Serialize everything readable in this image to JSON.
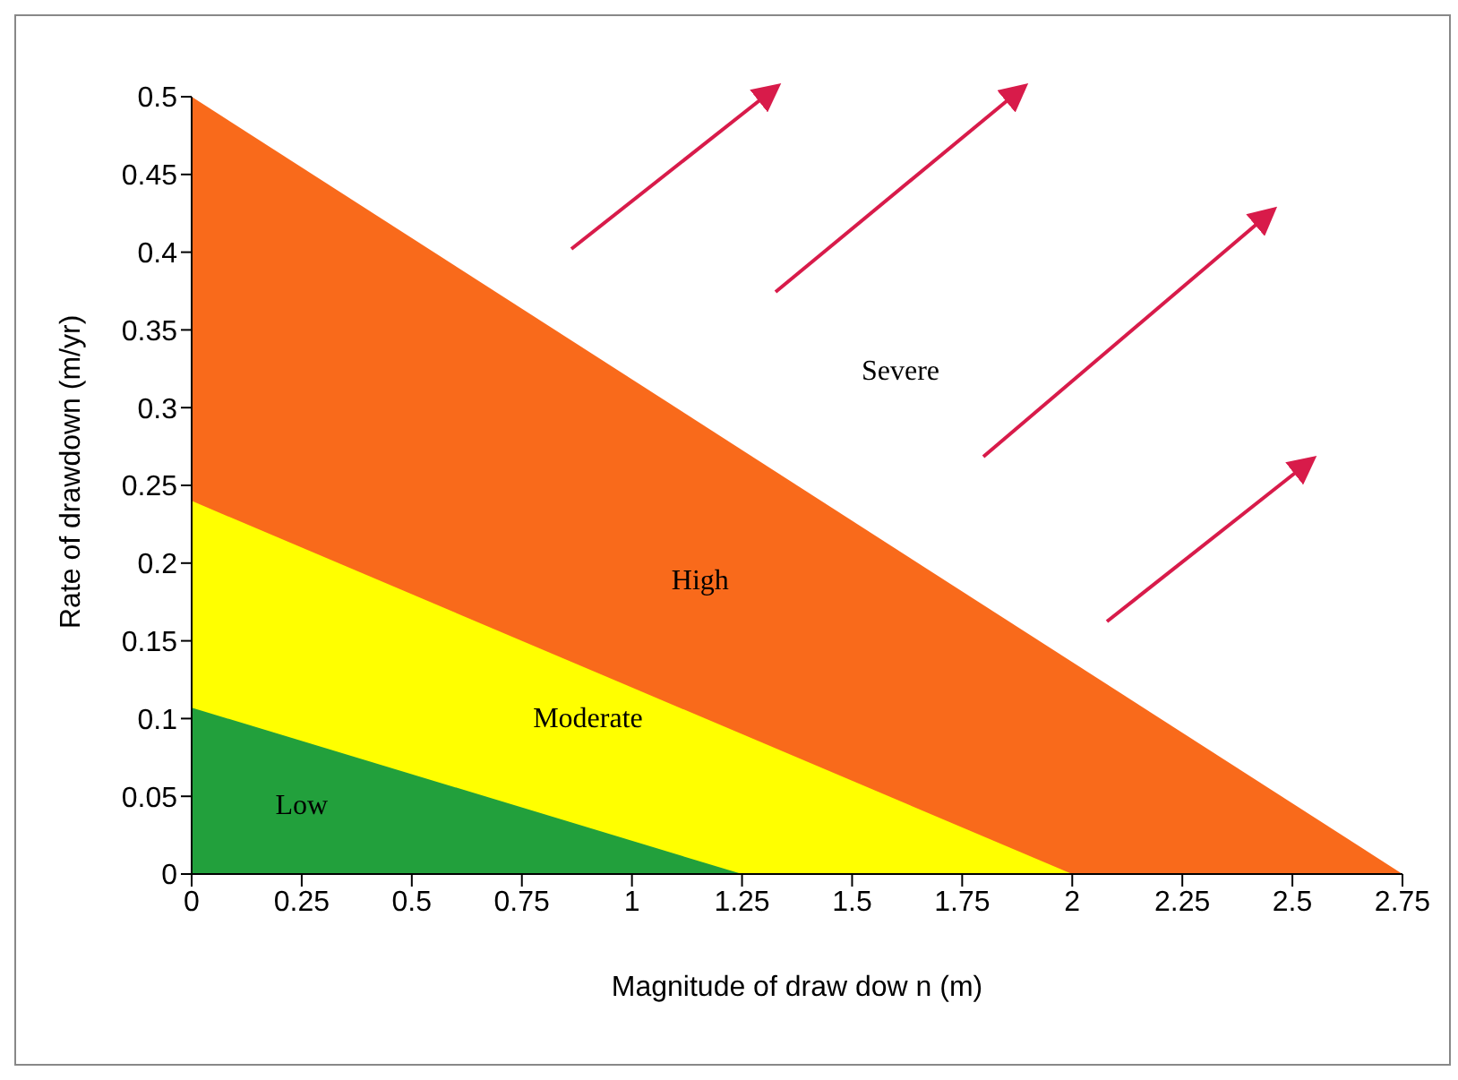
{
  "chart_data": {
    "type": "area",
    "xlabel": "Magnitude of draw dow n (m)",
    "ylabel": "Rate of drawdown (m/yr)",
    "series": [
      {
        "name": "High",
        "color": "#f96a1b",
        "x": [
          0,
          2.75
        ],
        "values": [
          0.5,
          0
        ]
      },
      {
        "name": "Moderate",
        "color": "#ffff00",
        "x": [
          0,
          2
        ],
        "values": [
          0.24,
          0
        ]
      },
      {
        "name": "Low",
        "color": "#22a03c",
        "x": [
          0,
          1.25
        ],
        "values": [
          0.107,
          0
        ]
      }
    ],
    "annotations": [
      "Severe"
    ],
    "xlim": [
      0,
      2.75
    ],
    "xticks": [
      0,
      0.25,
      0.5,
      0.75,
      1,
      1.25,
      1.5,
      1.75,
      2,
      2.25,
      2.5,
      2.75
    ],
    "ylim": [
      0,
      0.5
    ],
    "yticks": [
      0,
      0.05,
      0.1,
      0.15,
      0.2,
      0.25,
      0.3,
      0.35,
      0.4,
      0.45,
      0.5
    ],
    "grid": false,
    "legend": false
  }
}
